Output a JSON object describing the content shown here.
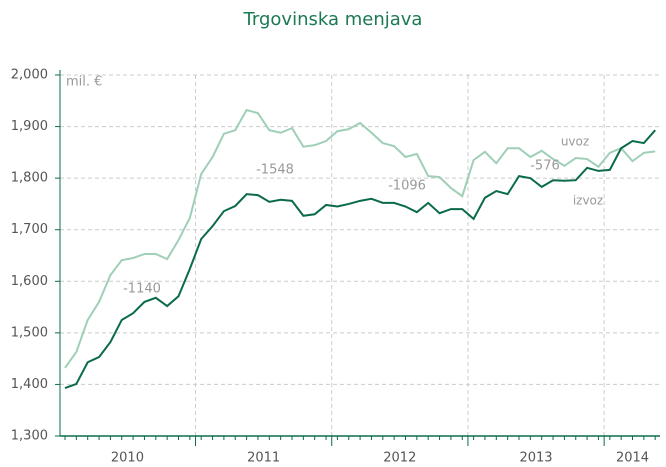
{
  "chart_data": {
    "type": "line",
    "title": "Trgovinska menjava",
    "y_unit": "mil. €",
    "year_labels": [
      "2010",
      "2011",
      "2012",
      "2013",
      "2014"
    ],
    "annotations": [
      "-1140",
      "-1548",
      "-1096",
      "-576"
    ],
    "ylim": [
      1300,
      2000
    ],
    "yticks": [
      {
        "value": 1300,
        "label": "1,300"
      },
      {
        "value": 1400,
        "label": "1,400"
      },
      {
        "value": 1500,
        "label": "1,500"
      },
      {
        "value": 1600,
        "label": "1,600"
      },
      {
        "value": 1700,
        "label": "1,700"
      },
      {
        "value": 1800,
        "label": "1,800"
      },
      {
        "value": 1900,
        "label": "1,900"
      },
      {
        "value": 2000,
        "label": "2,000"
      }
    ],
    "grid": true,
    "series": [
      {
        "name": "uvoz",
        "color": "#9fcfb6",
        "values": [
          1432,
          1463,
          1525,
          1560,
          1612,
          1641,
          1645,
          1653,
          1653,
          1643,
          1680,
          1723,
          1808,
          1841,
          1886,
          1893,
          1932,
          1926,
          1893,
          1888,
          1897,
          1861,
          1864,
          1872,
          1891,
          1895,
          1907,
          1888,
          1868,
          1862,
          1841,
          1847,
          1804,
          1802,
          1781,
          1765,
          1835,
          1851,
          1829,
          1858,
          1858,
          1841,
          1853,
          1837,
          1824,
          1839,
          1837,
          1822,
          1849,
          1858,
          1833,
          1849,
          1852
        ]
      },
      {
        "name": "izvoz",
        "color": "#0b6b48",
        "values": [
          1393,
          1401,
          1443,
          1453,
          1482,
          1525,
          1538,
          1560,
          1568,
          1552,
          1571,
          1624,
          1682,
          1707,
          1736,
          1746,
          1769,
          1767,
          1754,
          1758,
          1756,
          1727,
          1730,
          1748,
          1745,
          1750,
          1756,
          1760,
          1752,
          1752,
          1745,
          1734,
          1752,
          1732,
          1740,
          1740,
          1721,
          1762,
          1775,
          1769,
          1804,
          1800,
          1783,
          1796,
          1795,
          1796,
          1820,
          1814,
          1816,
          1858,
          1872,
          1868,
          1893
        ]
      }
    ]
  }
}
